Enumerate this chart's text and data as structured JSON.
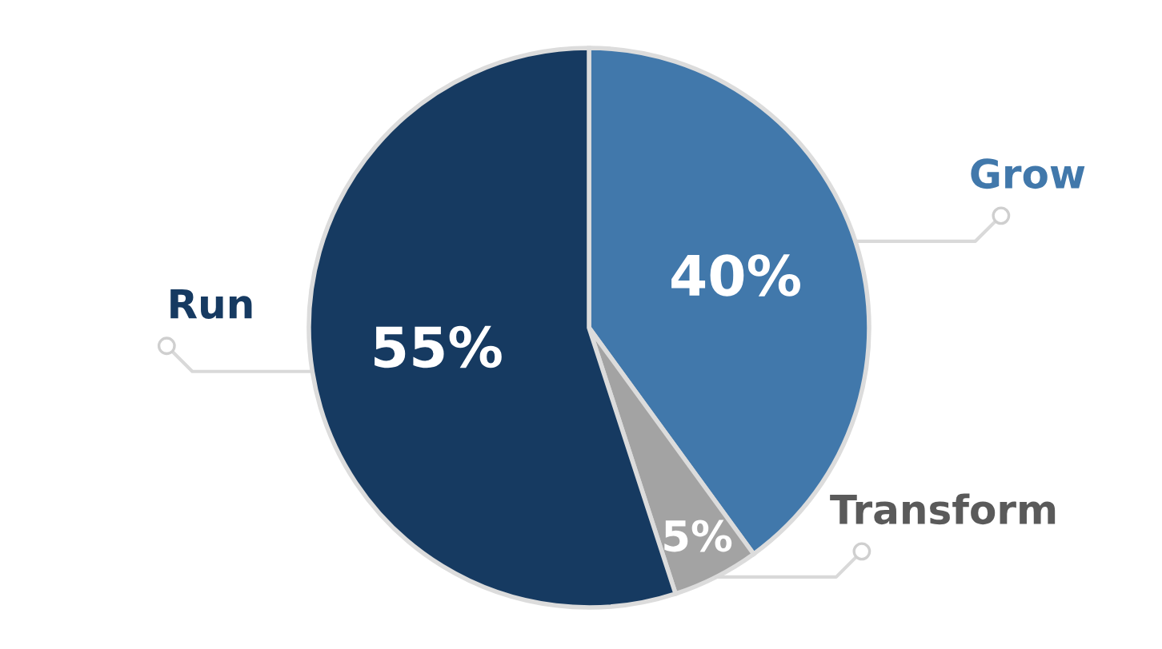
{
  "chart_data": {
    "type": "pie",
    "categories": [
      "Grow",
      "Transform",
      "Run"
    ],
    "values": [
      40,
      5,
      55
    ],
    "colors": [
      "#4178ab",
      "#a3a3a3",
      "#163a61"
    ],
    "value_labels": [
      "40%",
      "5%",
      "55%"
    ]
  }
}
